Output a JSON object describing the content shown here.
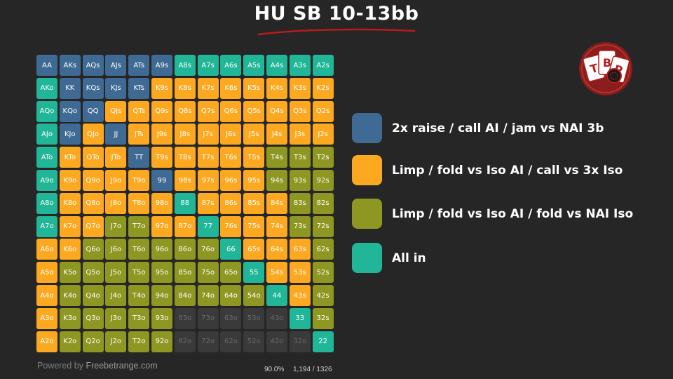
{
  "title": "HU SB 10-13bb",
  "colors": {
    "blue": "#3f6a94",
    "orange": "#fca921",
    "olive": "#8e9722",
    "teal": "#21b697",
    "gray": "#3a3a3a",
    "accent": "#b71c1c"
  },
  "grid": {
    "rows": [
      {
        "hands": [
          "AA",
          "AKs",
          "AQs",
          "AJs",
          "ATs",
          "A9s",
          "A8s",
          "A7s",
          "A6s",
          "A5s",
          "A4s",
          "A3s",
          "A2s"
        ],
        "actions": [
          "blue",
          "blue",
          "blue",
          "blue",
          "blue",
          "blue",
          "teal",
          "teal",
          "teal",
          "teal",
          "teal",
          "teal",
          "teal"
        ]
      },
      {
        "hands": [
          "AKo",
          "KK",
          "KQs",
          "KJs",
          "KTs",
          "K9s",
          "K8s",
          "K7s",
          "K6s",
          "K5s",
          "K4s",
          "K3s",
          "K2s"
        ],
        "actions": [
          "teal",
          "blue",
          "blue",
          "blue",
          "blue",
          "orange",
          "orange",
          "orange",
          "orange",
          "orange",
          "orange",
          "orange",
          "orange"
        ]
      },
      {
        "hands": [
          "AQo",
          "KQo",
          "QQ",
          "QJs",
          "QTs",
          "Q9s",
          "Q8s",
          "Q7s",
          "Q6s",
          "Q5s",
          "Q4s",
          "Q3s",
          "Q2s"
        ],
        "actions": [
          "teal",
          "blue",
          "blue",
          "orange",
          "orange",
          "orange",
          "orange",
          "orange",
          "orange",
          "orange",
          "orange",
          "orange",
          "orange"
        ]
      },
      {
        "hands": [
          "AJo",
          "KJo",
          "QJo",
          "JJ",
          "JTs",
          "J9s",
          "J8s",
          "J7s",
          "J6s",
          "J5s",
          "J4s",
          "J3s",
          "J2s"
        ],
        "actions": [
          "teal",
          "blue",
          "orange",
          "blue",
          "orange",
          "orange",
          "orange",
          "orange",
          "orange",
          "orange",
          "orange",
          "orange",
          "orange"
        ]
      },
      {
        "hands": [
          "ATo",
          "KTo",
          "QTo",
          "JTo",
          "TT",
          "T9s",
          "T8s",
          "T7s",
          "T6s",
          "T5s",
          "T4s",
          "T3s",
          "T2s"
        ],
        "actions": [
          "teal",
          "orange",
          "orange",
          "orange",
          "blue",
          "orange",
          "orange",
          "orange",
          "orange",
          "orange",
          "olive",
          "olive",
          "olive"
        ]
      },
      {
        "hands": [
          "A9o",
          "K9o",
          "Q9o",
          "J9o",
          "T9o",
          "99",
          "98s",
          "97s",
          "96s",
          "95s",
          "94s",
          "93s",
          "92s"
        ],
        "actions": [
          "teal",
          "orange",
          "orange",
          "orange",
          "orange",
          "blue",
          "orange",
          "orange",
          "orange",
          "orange",
          "olive",
          "olive",
          "olive"
        ]
      },
      {
        "hands": [
          "A8o",
          "K8o",
          "Q8o",
          "J8o",
          "T8o",
          "98o",
          "88",
          "87s",
          "86s",
          "85s",
          "84s",
          "83s",
          "82s"
        ],
        "actions": [
          "teal",
          "orange",
          "orange",
          "orange",
          "orange",
          "orange",
          "teal",
          "orange",
          "orange",
          "orange",
          "orange",
          "olive",
          "olive"
        ]
      },
      {
        "hands": [
          "A7o",
          "K7o",
          "Q7o",
          "J7o",
          "T7o",
          "97o",
          "87o",
          "77",
          "76s",
          "75s",
          "74s",
          "73s",
          "72s"
        ],
        "actions": [
          "teal",
          "orange",
          "orange",
          "olive",
          "olive",
          "orange",
          "orange",
          "teal",
          "orange",
          "orange",
          "orange",
          "olive",
          "olive"
        ]
      },
      {
        "hands": [
          "A6o",
          "K6o",
          "Q6o",
          "J6o",
          "T6o",
          "96o",
          "86o",
          "76o",
          "66",
          "65s",
          "64s",
          "63s",
          "62s"
        ],
        "actions": [
          "orange",
          "orange",
          "olive",
          "olive",
          "olive",
          "olive",
          "olive",
          "olive",
          "teal",
          "orange",
          "orange",
          "orange",
          "olive"
        ]
      },
      {
        "hands": [
          "A5o",
          "K5o",
          "Q5o",
          "J5o",
          "T5o",
          "95o",
          "85o",
          "75o",
          "65o",
          "55",
          "54s",
          "53s",
          "52s"
        ],
        "actions": [
          "orange",
          "olive",
          "olive",
          "olive",
          "olive",
          "olive",
          "olive",
          "olive",
          "olive",
          "teal",
          "orange",
          "orange",
          "olive"
        ]
      },
      {
        "hands": [
          "A4o",
          "K4o",
          "Q4o",
          "J4o",
          "T4o",
          "94o",
          "84o",
          "74o",
          "64o",
          "54o",
          "44",
          "43s",
          "42s"
        ],
        "actions": [
          "orange",
          "olive",
          "olive",
          "olive",
          "olive",
          "olive",
          "olive",
          "olive",
          "olive",
          "olive",
          "teal",
          "orange",
          "olive"
        ]
      },
      {
        "hands": [
          "A3o",
          "K3o",
          "Q3o",
          "J3o",
          "T3o",
          "93o",
          "83o",
          "73o",
          "63o",
          "53o",
          "43o",
          "33",
          "32s"
        ],
        "actions": [
          "orange",
          "olive",
          "olive",
          "olive",
          "olive",
          "olive",
          "gray",
          "gray",
          "gray",
          "gray",
          "gray",
          "teal",
          "olive"
        ]
      },
      {
        "hands": [
          "A2o",
          "K2o",
          "Q2o",
          "J2o",
          "T2o",
          "92o",
          "82o",
          "72o",
          "62o",
          "52o",
          "42o",
          "32o",
          "22"
        ],
        "actions": [
          "orange",
          "olive",
          "olive",
          "olive",
          "olive",
          "olive",
          "gray",
          "gray",
          "gray",
          "gray",
          "gray",
          "gray",
          "teal"
        ]
      }
    ]
  },
  "legend": [
    {
      "label": "2x raise / call AI / jam vs NAI 3b",
      "color": "blue"
    },
    {
      "label": "Limp / fold vs Iso AI / call vs 3x Iso",
      "color": "orange"
    },
    {
      "label": "Limp / fold vs Iso AI / fold vs NAI Iso",
      "color": "olive"
    },
    {
      "label": "All in",
      "color": "teal"
    }
  ],
  "footer": {
    "powered_by": "Powered by ",
    "brand": "Freebetrange.com"
  },
  "stats": {
    "percent": "90.0%",
    "combos": "1,194 / 1326"
  },
  "logo": {
    "text_t": "T",
    "text_b": "B",
    "text_p": "P",
    "icon": "cards-logo-icon"
  }
}
